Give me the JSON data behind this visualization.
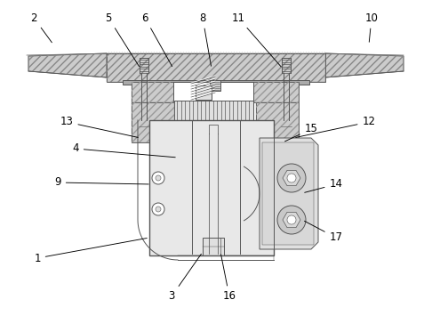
{
  "bg_color": "#ffffff",
  "lc": "#555555",
  "lc_dark": "#333333",
  "fill_hatch": "#cccccc",
  "fill_body": "#e8e8e8",
  "fill_mid": "#d0d0d0",
  "fill_white": "#ffffff",
  "figsize": [
    4.86,
    3.55
  ],
  "dpi": 100,
  "annotations": [
    [
      "2",
      38,
      335,
      60,
      305
    ],
    [
      "5",
      122,
      335,
      158,
      278
    ],
    [
      "6",
      163,
      335,
      195,
      278
    ],
    [
      "8",
      228,
      335,
      238,
      278
    ],
    [
      "11",
      268,
      335,
      318,
      278
    ],
    [
      "10",
      418,
      335,
      415,
      305
    ],
    [
      "13",
      75,
      218,
      158,
      200
    ],
    [
      "12",
      415,
      218,
      330,
      200
    ],
    [
      "4",
      85,
      188,
      200,
      178
    ],
    [
      "15",
      350,
      210,
      318,
      195
    ],
    [
      "9",
      65,
      150,
      170,
      148
    ],
    [
      "1",
      42,
      65,
      168,
      88
    ],
    [
      "3",
      193,
      22,
      228,
      72
    ],
    [
      "14",
      378,
      148,
      340,
      138
    ],
    [
      "16",
      258,
      22,
      248,
      72
    ],
    [
      "17",
      378,
      88,
      340,
      108
    ]
  ]
}
